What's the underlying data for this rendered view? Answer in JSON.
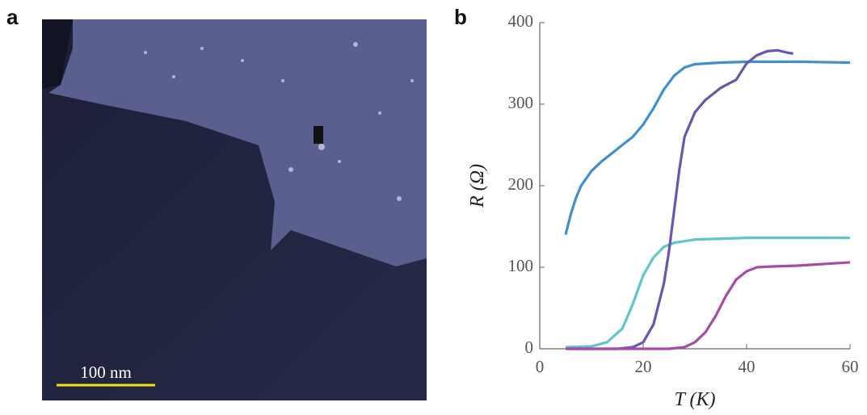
{
  "panel_labels": [
    "a",
    "b"
  ],
  "scale_bar": "100 nm",
  "chart_data": {
    "type": "line",
    "x_label": "T (K)",
    "y_label": "R (Ω)",
    "xlim": [
      0,
      60
    ],
    "xticks": [
      0,
      20,
      40,
      60
    ],
    "ylim": [
      0,
      400
    ],
    "yticks": [
      0,
      100,
      200,
      300,
      400
    ],
    "series": [
      {
        "color": "#3f8fd2",
        "x": [
          5,
          6,
          7,
          8,
          10,
          12,
          15,
          18,
          20,
          22,
          24,
          26,
          28,
          30,
          35,
          40,
          50,
          60
        ],
        "values": [
          140,
          165,
          185,
          200,
          218,
          230,
          245,
          260,
          275,
          295,
          318,
          335,
          345,
          349,
          351,
          352,
          352,
          351
        ]
      },
      {
        "color": "#5ec6cc",
        "x": [
          5,
          10,
          13,
          16,
          18,
          20,
          22,
          24,
          26,
          30,
          40,
          60
        ],
        "values": [
          2,
          3,
          8,
          25,
          55,
          90,
          112,
          125,
          130,
          134,
          136,
          136
        ]
      },
      {
        "color": "#6a55b0",
        "x": [
          5,
          15,
          18,
          20,
          22,
          24,
          25,
          26,
          27,
          28,
          30,
          32,
          35,
          38,
          40,
          42,
          44,
          46,
          48,
          49
        ],
        "values": [
          0,
          0,
          2,
          8,
          30,
          80,
          120,
          170,
          220,
          260,
          290,
          305,
          320,
          330,
          350,
          360,
          365,
          366,
          363,
          362
        ]
      },
      {
        "color": "#a64ca6",
        "x": [
          5,
          25,
          28,
          30,
          32,
          34,
          36,
          38,
          40,
          42,
          45,
          50,
          55,
          60
        ],
        "values": [
          0,
          0,
          2,
          8,
          20,
          40,
          65,
          85,
          95,
          100,
          101,
          102,
          104,
          106
        ]
      }
    ]
  }
}
